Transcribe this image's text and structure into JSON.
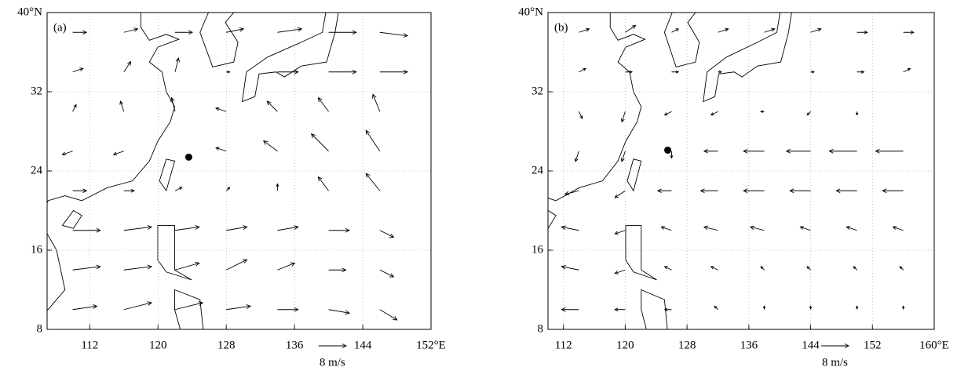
{
  "panels": [
    {
      "label": "(a)",
      "xlim": [
        107,
        152
      ],
      "ylim": [
        8,
        40
      ],
      "grid": true,
      "xticks": [
        112,
        120,
        128,
        136,
        144,
        {
          "value": 152,
          "label": "152°E"
        }
      ],
      "yticks": [
        8,
        16,
        24,
        32,
        {
          "value": 40,
          "label": "40°N"
        }
      ],
      "marker": {
        "lon": 123.6,
        "lat": 25.4
      },
      "reference": {
        "u": 8,
        "label": "8 m/s"
      },
      "vectors": {
        "lons": [
          110,
          116,
          122,
          128,
          134,
          140,
          146
        ],
        "lats": [
          10,
          14,
          18,
          22,
          26,
          30,
          34,
          38
        ],
        "u": [
          [
            7,
            8,
            8,
            7,
            6,
            6,
            5
          ],
          [
            8,
            8,
            7,
            6,
            5,
            5,
            4
          ],
          [
            8,
            8,
            7,
            6,
            6,
            6,
            4
          ],
          [
            4,
            3,
            2,
            1,
            0,
            -3,
            -4
          ],
          [
            -3,
            -3,
            0,
            -3,
            -4,
            -5,
            -4
          ],
          [
            1,
            -1,
            -1,
            -3,
            -3,
            -3,
            -2
          ],
          [
            3,
            2,
            1,
            1,
            6,
            8,
            8
          ],
          [
            4,
            4,
            5,
            5,
            7,
            8,
            8
          ]
        ],
        "v": [
          [
            1,
            2,
            2,
            1,
            0,
            -1,
            -3
          ],
          [
            1,
            1,
            2,
            3,
            2,
            0,
            -2
          ],
          [
            0,
            1,
            1,
            1,
            1,
            0,
            -2
          ],
          [
            0,
            0,
            1,
            1,
            2,
            4,
            5
          ],
          [
            -1,
            -1,
            0,
            1,
            3,
            5,
            6
          ],
          [
            2,
            3,
            4,
            1,
            3,
            4,
            5
          ],
          [
            1,
            3,
            4,
            0,
            0,
            0,
            0
          ],
          [
            0,
            1,
            0,
            1,
            1,
            0,
            -1
          ]
        ]
      }
    },
    {
      "label": "(b)",
      "xlim": [
        110,
        160
      ],
      "ylim": [
        8,
        40
      ],
      "grid": true,
      "xticks": [
        112,
        120,
        128,
        136,
        144,
        152,
        {
          "value": 160,
          "label": "160°E"
        }
      ],
      "yticks": [
        8,
        16,
        24,
        32,
        {
          "value": 40,
          "label": "40°N"
        }
      ],
      "marker": {
        "lon": 125.5,
        "lat": 26.1
      },
      "reference": {
        "u": 8,
        "label": "8 m/s"
      },
      "vectors": {
        "lons": [
          114,
          120,
          126,
          132,
          138,
          144,
          150,
          156
        ],
        "lats": [
          10,
          14,
          18,
          22,
          26,
          30,
          34,
          38
        ],
        "u": [
          [
            -5,
            -3,
            -2,
            -1,
            0,
            0,
            0,
            0
          ],
          [
            -5,
            -3,
            -2,
            -2,
            -1,
            -1,
            -1,
            -1
          ],
          [
            -5,
            -3,
            -3,
            -4,
            -4,
            -3,
            -3,
            -3
          ],
          [
            -4,
            -3,
            -4,
            -5,
            -6,
            -6,
            -6,
            -6
          ],
          [
            -1,
            -1,
            0,
            -4,
            -6,
            -7,
            -8,
            -8
          ],
          [
            1,
            -1,
            -2,
            -2,
            -1,
            -1,
            0,
            0
          ],
          [
            2,
            2,
            2,
            1,
            0,
            1,
            2,
            2
          ],
          [
            3,
            3,
            2,
            3,
            3,
            3,
            3,
            3
          ]
        ],
        "v": [
          [
            0,
            0,
            0,
            1,
            1,
            1,
            1,
            1
          ],
          [
            1,
            -1,
            1,
            1,
            1,
            1,
            1,
            1
          ],
          [
            1,
            -1,
            1,
            1,
            1,
            1,
            1,
            1
          ],
          [
            -1,
            -2,
            0,
            0,
            0,
            0,
            0,
            0
          ],
          [
            -3,
            -3,
            -2,
            0,
            0,
            0,
            0,
            0
          ],
          [
            -2,
            -3,
            -1,
            -1,
            0,
            -1,
            -1,
            0
          ],
          [
            1,
            0,
            0,
            0,
            0,
            0,
            0,
            1
          ],
          [
            1,
            2,
            1,
            1,
            1,
            1,
            0,
            0
          ]
        ]
      }
    }
  ]
}
